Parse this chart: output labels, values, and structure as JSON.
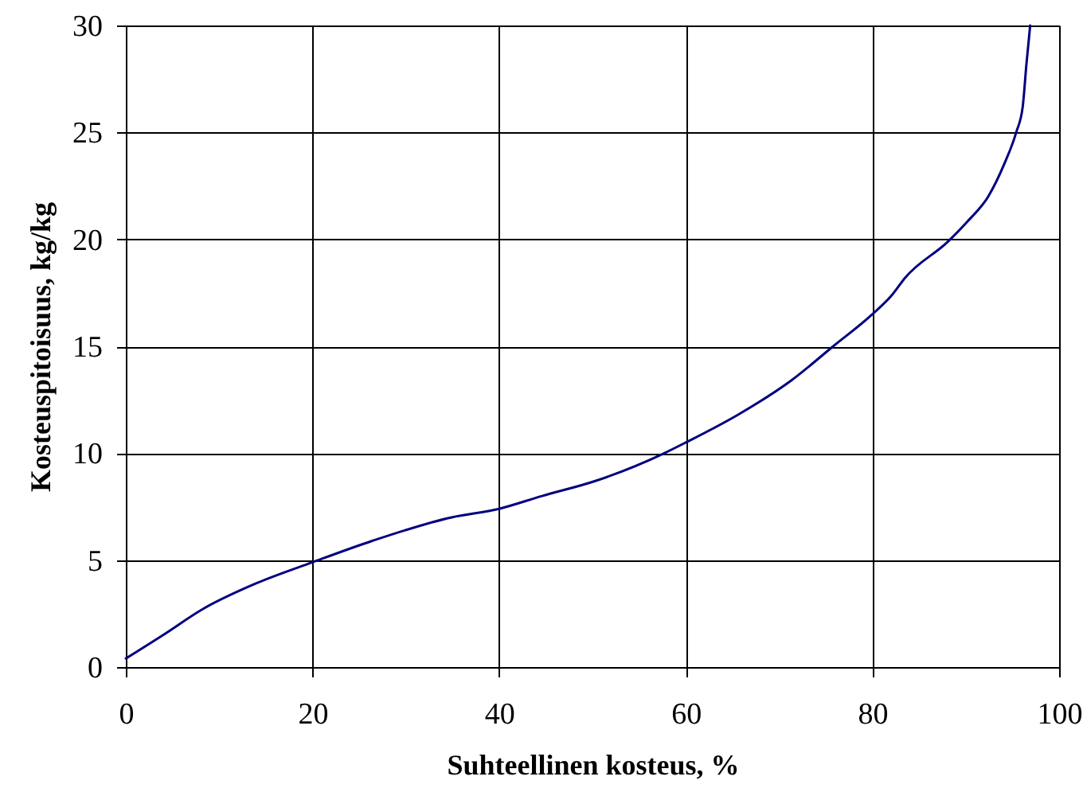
{
  "chart_data": {
    "type": "line",
    "xlabel": "Suhteellinen kosteus, %",
    "ylabel": "Kosteuspitoisuus, kg/kg",
    "x": [
      0,
      4,
      8.2,
      13.9,
      20,
      26.4,
      34.9,
      40,
      44.6,
      50.3,
      57.7,
      60,
      65.6,
      71.3,
      75.8,
      80,
      82.1,
      83.5,
      88.1,
      90.1,
      92.4,
      94.1,
      95.4,
      96.1,
      96.5,
      96.9
    ],
    "series": [
      {
        "color": "#000080",
        "values": [
          0.4,
          1.5,
          2.7,
          3.9,
          4.9,
          5.9,
          7.0,
          7.4,
          8.0,
          8.7,
          10.0,
          10.5,
          11.8,
          13.4,
          15.0,
          16.5,
          17.4,
          18.2,
          19.9,
          20.8,
          22.0,
          23.5,
          25.0,
          26.2,
          28.2,
          30.0
        ]
      }
    ],
    "xlim": [
      0,
      100
    ],
    "ylim": [
      0,
      30
    ],
    "xticks": [
      0,
      20,
      40,
      60,
      80,
      100
    ],
    "yticks": [
      0,
      5,
      10,
      15,
      20,
      25,
      30
    ],
    "grid": true,
    "line_style": "solid"
  }
}
